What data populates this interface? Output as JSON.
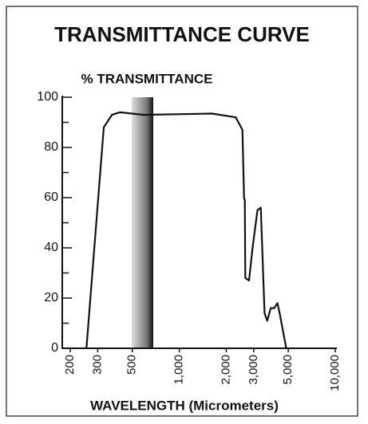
{
  "chart_data": {
    "type": "line",
    "title": "TRANSMITTANCE CURVE",
    "ylabel": "% TRANSMITTANCE",
    "xlabel": "WAVELENGTH (Micrometers)",
    "xscale": "log",
    "xlim": [
      200,
      10000
    ],
    "ylim": [
      0,
      100
    ],
    "xticks": [
      200,
      300,
      500,
      {
        "value": 1000,
        "label": "1,000"
      },
      {
        "value": 2000,
        "label": "2,000"
      },
      {
        "value": 3000,
        "label": "3,000"
      },
      {
        "value": 5000,
        "label": "5,000"
      },
      {
        "value": 10000,
        "label": "10,000"
      }
    ],
    "yticks": [
      0,
      20,
      40,
      60,
      80,
      100
    ],
    "yminorticks": [
      10,
      30,
      50,
      70,
      90
    ],
    "color": "#111111",
    "x": [
      254,
      328,
      370,
      416,
      593,
      1620,
      2300,
      2540,
      2600,
      2630,
      2650,
      2800,
      2950,
      3170,
      3330,
      3520,
      3660,
      3860,
      4060,
      4260,
      4400,
      4850
    ],
    "values": [
      0,
      88,
      93,
      94,
      93,
      93.5,
      92,
      87,
      60,
      59,
      28,
      27,
      40,
      55,
      56,
      14,
      11,
      16,
      16,
      18,
      14,
      0
    ]
  }
}
